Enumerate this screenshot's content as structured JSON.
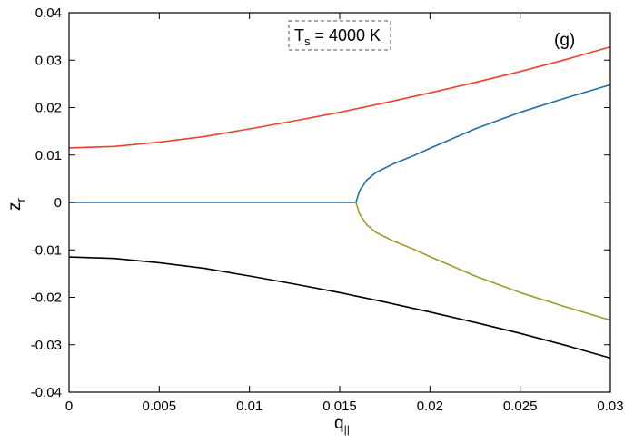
{
  "chart_data": {
    "type": "line",
    "panel_label": "(g)",
    "annotation": {
      "main": "T",
      "sub": "s",
      "rest": " = 4000 K"
    },
    "xlabel": {
      "main": "q",
      "sub": "||"
    },
    "ylabel": {
      "main": "z",
      "sub": "r"
    },
    "xlim": [
      0,
      0.03
    ],
    "ylim": [
      -0.04,
      0.04
    ],
    "x_ticks": [
      "0",
      "0.005",
      "0.01",
      "0.015",
      "0.02",
      "0.025",
      "0.03"
    ],
    "y_ticks": [
      "-0.04",
      "-0.03",
      "-0.02",
      "-0.01",
      "0",
      "0.01",
      "0.02",
      "0.03",
      "0.04"
    ],
    "grid": false,
    "legend": "none",
    "series": [
      {
        "color": "#e8412f",
        "x": [
          0,
          0.0025,
          0.005,
          0.0075,
          0.01,
          0.0125,
          0.015,
          0.0175,
          0.02,
          0.0225,
          0.025,
          0.0275,
          0.03
        ],
        "y": [
          0.0115,
          0.0118,
          0.0127,
          0.0139,
          0.0155,
          0.0172,
          0.019,
          0.021,
          0.0231,
          0.0253,
          0.0276,
          0.0301,
          0.0328
        ]
      },
      {
        "color": "#000000",
        "x": [
          0,
          0.0025,
          0.005,
          0.0075,
          0.01,
          0.0125,
          0.015,
          0.0175,
          0.02,
          0.0225,
          0.025,
          0.0275,
          0.03
        ],
        "y": [
          -0.0115,
          -0.0118,
          -0.0127,
          -0.0139,
          -0.0155,
          -0.0172,
          -0.019,
          -0.021,
          -0.0231,
          -0.0253,
          -0.0276,
          -0.0301,
          -0.0328
        ]
      },
      {
        "color": "#1f6fa8",
        "x": [
          0,
          0.004,
          0.008,
          0.012,
          0.0159,
          0.0161,
          0.0165,
          0.017,
          0.018,
          0.019,
          0.02,
          0.0225,
          0.025,
          0.0275,
          0.03
        ],
        "y": [
          0,
          0,
          0,
          0,
          0,
          0.0025,
          0.0047,
          0.0063,
          0.0082,
          0.0097,
          0.0114,
          0.0155,
          0.019,
          0.022,
          0.0248
        ]
      },
      {
        "color": "#a09a2c",
        "x": [
          0.0159,
          0.0161,
          0.0165,
          0.017,
          0.018,
          0.019,
          0.02,
          0.0225,
          0.025,
          0.0275,
          0.03
        ],
        "y": [
          0,
          -0.0025,
          -0.0047,
          -0.0063,
          -0.0082,
          -0.0097,
          -0.0114,
          -0.0155,
          -0.019,
          -0.022,
          -0.0248
        ]
      }
    ]
  }
}
